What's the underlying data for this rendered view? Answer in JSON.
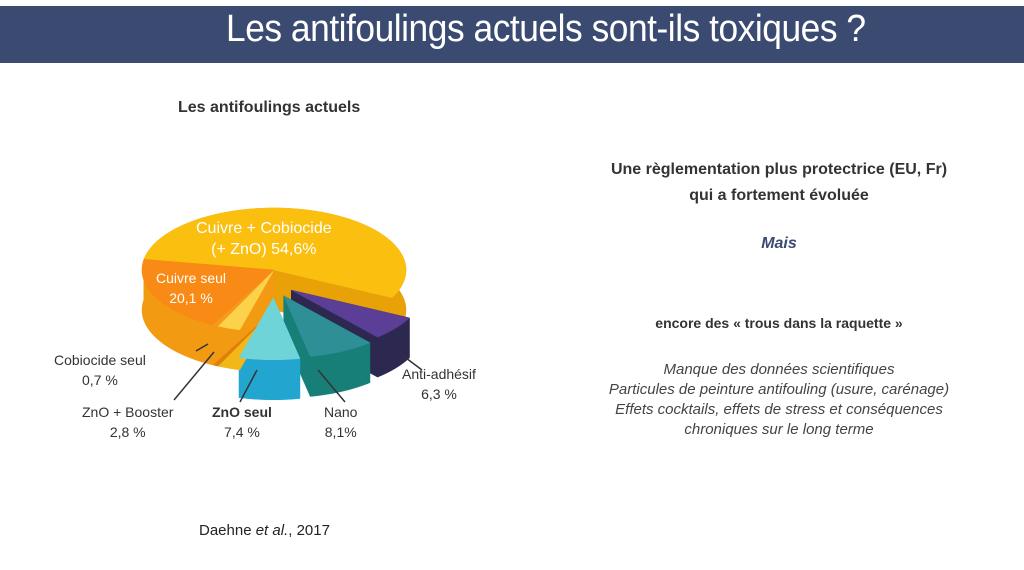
{
  "slide": {
    "title": "Les antifoulings actuels sont-ils toxiques ?",
    "right": {
      "line1": "Une règlementation plus protectrice (EU, Fr)",
      "line2": "qui a fortement évoluée",
      "mais": "Mais",
      "trous": "encore des « trous dans la raquette »",
      "bullets": [
        "Manque des données scientifiques",
        "Particules de peinture antifouling (usure, carénage)",
        "Effets cocktails, effets de stress et conséquences",
        "chroniques sur le long terme"
      ]
    },
    "citation_author": "Daehne ",
    "citation_etal": "et al.",
    "citation_year": ", 2017"
  },
  "chart_data": {
    "type": "pie",
    "title": "Les antifoulings actuels",
    "slices": [
      {
        "name": "Cuivre + Cobiocide",
        "name2": "(+ ZnO)",
        "value": 54.6,
        "label": "54,6%",
        "color": "#fbbf10",
        "side": "#e8a106",
        "exploded": false
      },
      {
        "name": "Anti-adhésif",
        "value": 6.3,
        "label": "6,3 %",
        "color": "#5b3f96",
        "side": "#2c2850",
        "exploded": true
      },
      {
        "name": "Nano",
        "value": 8.1,
        "label": "8,1%",
        "color": "#2f8f96",
        "side": "#177f78",
        "exploded": true
      },
      {
        "name": "ZnO seul",
        "value": 7.4,
        "label": "7,4 %",
        "color": "#6fd4d8",
        "side": "#22a6cf",
        "exploded": true
      },
      {
        "name": "ZnO + Booster",
        "value": 2.8,
        "label": "2,8 %",
        "color": "#fcd24a",
        "side": "#f2b818",
        "exploded": false
      },
      {
        "name": "Cobiocide seul",
        "value": 0.7,
        "label": "0,7 %",
        "color": "#f59a1a",
        "side": "#e07f0c",
        "exploded": false
      },
      {
        "name": "Cuivre seul",
        "value": 20.1,
        "label": "20,1 %",
        "color": "#fa8a16",
        "side": "#f29a12",
        "exploded": false
      }
    ]
  }
}
